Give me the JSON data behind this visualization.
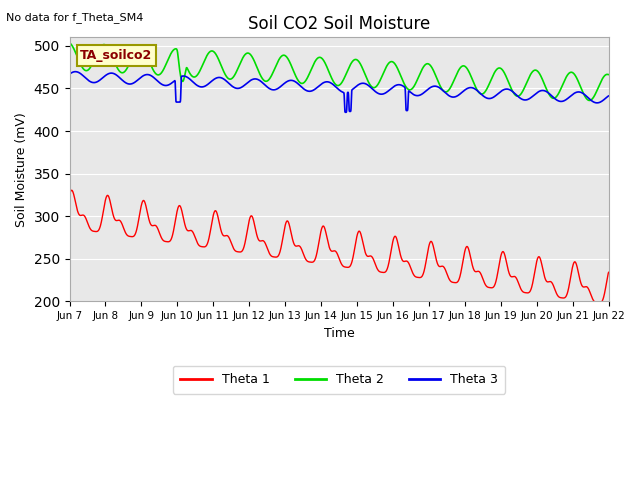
{
  "title": "Soil CO2 Soil Moisture",
  "ylabel": "Soil Moisture (mV)",
  "xlabel": "Time",
  "no_data_text": "No data for f_Theta_SM4",
  "box_label": "TA_soilco2",
  "ylim": [
    200,
    510
  ],
  "yticks": [
    200,
    250,
    300,
    350,
    400,
    450,
    500
  ],
  "xlim": [
    0,
    15
  ],
  "xtick_labels": [
    "Jun 7",
    "Jun 8",
    "Jun 9",
    "Jun 10",
    "Jun 11",
    "Jun 12",
    "Jun 13",
    "Jun 14",
    "Jun 15",
    "Jun 16",
    "Jun 17",
    "Jun 18",
    "Jun 19",
    "Jun 20",
    "Jun 21",
    "Jun 22"
  ],
  "line_colors": {
    "theta1": "#ff0000",
    "theta2": "#00dd00",
    "theta3": "#0000ee"
  },
  "legend_labels": [
    "Theta 1",
    "Theta 2",
    "Theta 3"
  ],
  "bg_color": "#e8e8e8",
  "fig_bg": "#ffffff"
}
